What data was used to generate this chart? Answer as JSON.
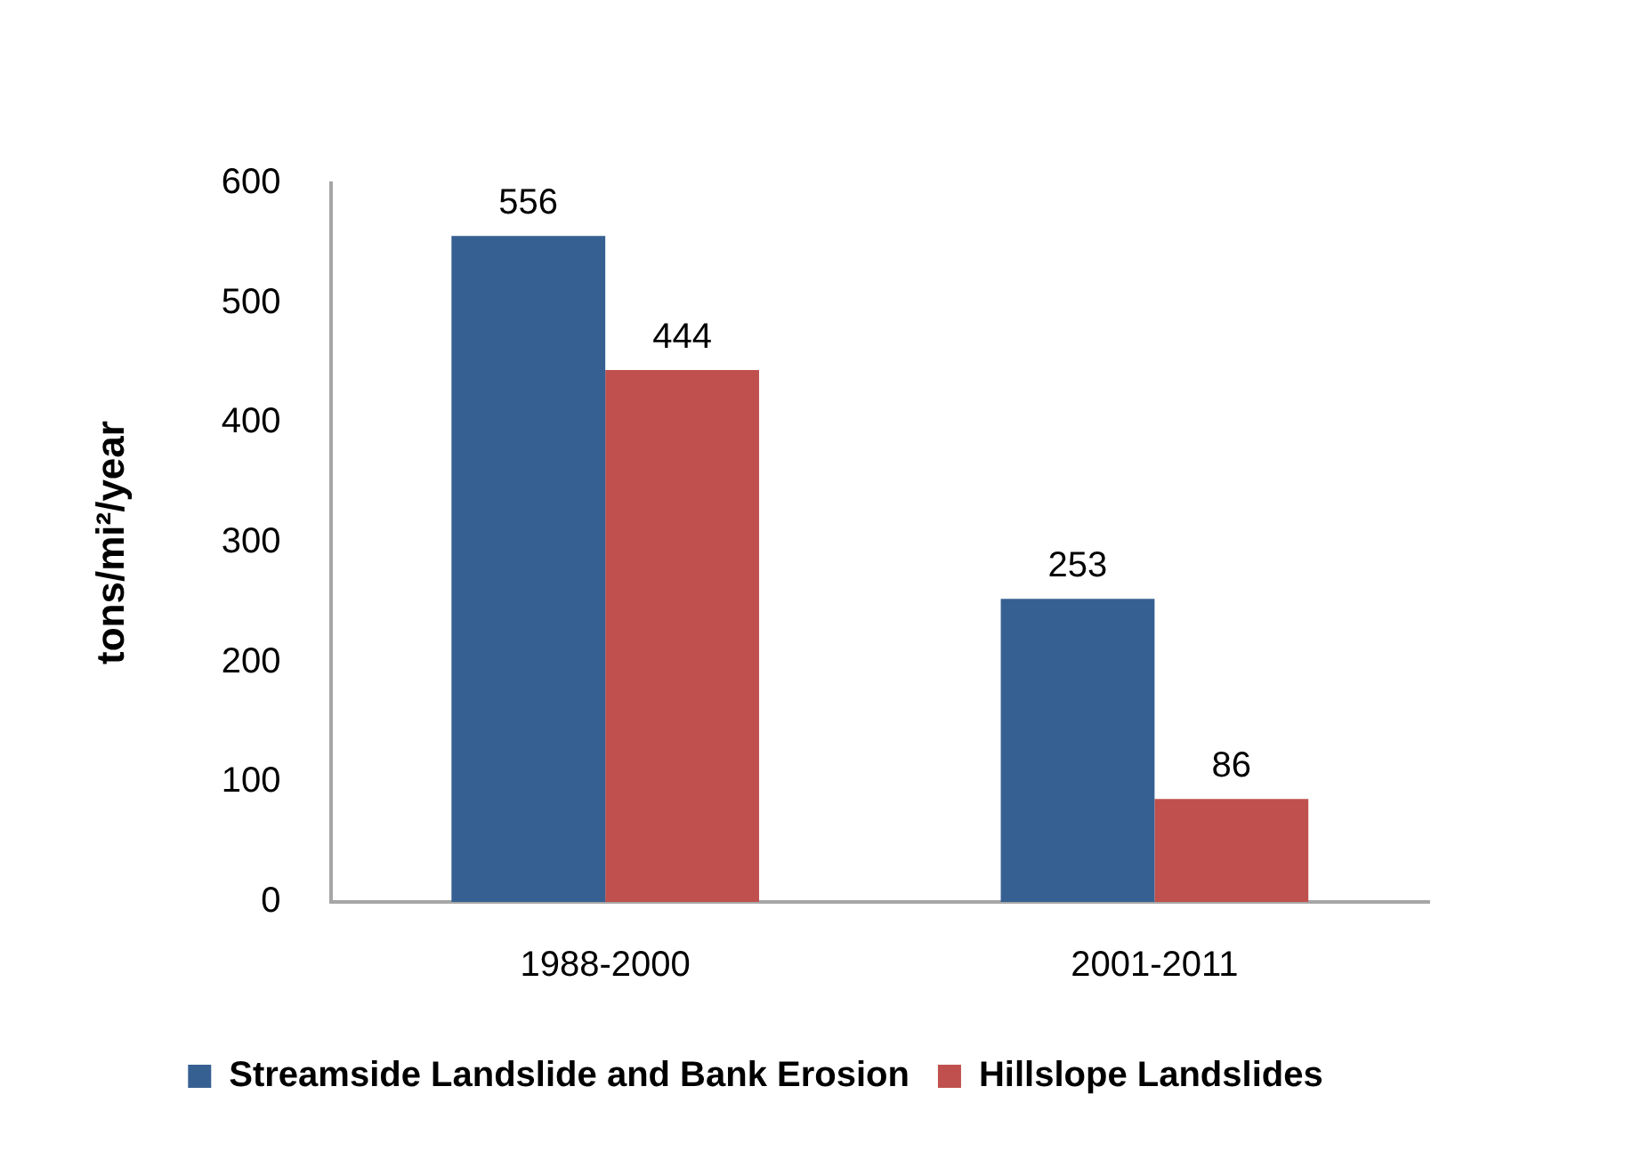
{
  "chart_data": {
    "type": "bar",
    "ylabel": "tons/mi²/year",
    "categories": [
      "1988-2000",
      "2001-2011"
    ],
    "series": [
      {
        "name": "Streamside Landslide and Bank Erosion",
        "color": "#376092",
        "values": [
          556,
          253
        ]
      },
      {
        "name": "Hillslope Landslides",
        "color": "#c0504d",
        "values": [
          444,
          86
        ]
      }
    ],
    "ylim": [
      0,
      600
    ],
    "yticks": [
      0,
      100,
      200,
      300,
      400,
      500,
      600
    ],
    "data_labels": true,
    "legend": "bottom"
  }
}
